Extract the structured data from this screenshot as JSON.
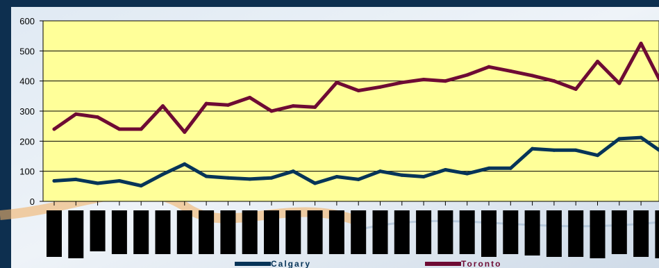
{
  "chart_data": {
    "type": "line",
    "ylim": [
      0,
      600
    ],
    "yticks": [
      0,
      100,
      200,
      300,
      400,
      500,
      600
    ],
    "grid": true,
    "legend_position": "bottom",
    "plot_background": "#FFFF99",
    "series": [
      {
        "name": "Calgary",
        "color": "#063458",
        "values": [
          68,
          73,
          60,
          68,
          52,
          90,
          124,
          83,
          78,
          74,
          78,
          100,
          60,
          82,
          73,
          100,
          87,
          82,
          105,
          92,
          110,
          110,
          175,
          170,
          170,
          153,
          208,
          212,
          162
        ]
      },
      {
        "name": "Toronto",
        "color": "#6E0B34",
        "values": [
          240,
          290,
          280,
          240,
          240,
          317,
          230,
          325,
          320,
          345,
          300,
          317,
          313,
          395,
          368,
          380,
          395,
          405,
          400,
          420,
          447,
          433,
          418,
          400,
          373,
          465,
          392,
          525,
          383
        ]
      }
    ],
    "x_tick_count": 29
  }
}
